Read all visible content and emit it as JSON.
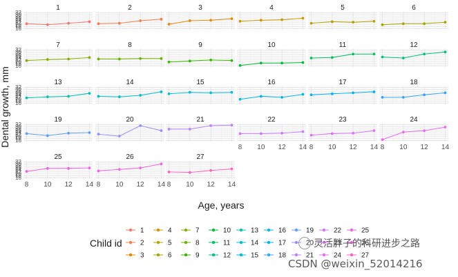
{
  "chart_data": {
    "type": "line",
    "title": "",
    "xlabel": "Age, years",
    "ylabel": "Dental growth, mm",
    "x": [
      8,
      10,
      12,
      14
    ],
    "x_ticks": [
      8,
      10,
      12,
      14
    ],
    "y_ticks": [
      16,
      18,
      20,
      22,
      24,
      26,
      28,
      30,
      32
    ],
    "ylim": [
      15,
      33
    ],
    "xlim": [
      7.7,
      14.3
    ],
    "grid": true,
    "legend_title": "Child id",
    "legend_position": "bottom",
    "facets": [
      "1",
      "2",
      "3",
      "4",
      "5",
      "6",
      "7",
      "8",
      "9",
      "10",
      "11",
      "12",
      "13",
      "14",
      "15",
      "16",
      "17",
      "18",
      "19",
      "20",
      "21",
      "22",
      "23",
      "24",
      "25",
      "26",
      "27"
    ],
    "series": [
      {
        "name": "1",
        "color": "#F8766D",
        "values": [
          21,
          20,
          21.5,
          23
        ]
      },
      {
        "name": "2",
        "color": "#F07E4E",
        "values": [
          21,
          21.5,
          24,
          25.5
        ]
      },
      {
        "name": "3",
        "color": "#E58700",
        "values": [
          20.5,
          24,
          24.5,
          26
        ]
      },
      {
        "name": "4",
        "color": "#C99800",
        "values": [
          23.5,
          24.5,
          25,
          26.5
        ]
      },
      {
        "name": "5",
        "color": "#B8A000",
        "values": [
          21.5,
          23,
          22.5,
          23.5
        ]
      },
      {
        "name": "6",
        "color": "#A3A500",
        "values": [
          20,
          21,
          21,
          22.5
        ]
      },
      {
        "name": "7",
        "color": "#85AD00",
        "values": [
          21.5,
          22.5,
          23,
          24.5
        ]
      },
      {
        "name": "8",
        "color": "#6BB100",
        "values": [
          23,
          23,
          23.5,
          23.5
        ]
      },
      {
        "name": "9",
        "color": "#39B600",
        "values": [
          20,
          21,
          22,
          21.5
        ]
      },
      {
        "name": "10",
        "color": "#00BA38",
        "values": [
          16.5,
          19,
          19,
          19.5
        ]
      },
      {
        "name": "11",
        "color": "#00BD5F",
        "values": [
          24,
          24.5,
          28,
          28
        ]
      },
      {
        "name": "12",
        "color": "#00BF7D",
        "values": [
          25,
          24,
          28,
          30
        ]
      },
      {
        "name": "13",
        "color": "#00C0AF",
        "values": [
          21.5,
          22.5,
          23,
          26
        ]
      },
      {
        "name": "14",
        "color": "#00BCC9",
        "values": [
          23,
          22.5,
          24,
          27.5
        ]
      },
      {
        "name": "15",
        "color": "#00BCD8",
        "values": [
          25.5,
          27,
          26.5,
          27
        ]
      },
      {
        "name": "16",
        "color": "#00B5E8",
        "values": [
          20,
          23,
          22,
          25
        ]
      },
      {
        "name": "17",
        "color": "#00B0F6",
        "values": [
          24.5,
          25.5,
          26.5,
          27.5
        ]
      },
      {
        "name": "18",
        "color": "#35A2FF",
        "values": [
          22,
          22,
          24.5,
          26.5
        ]
      },
      {
        "name": "19",
        "color": "#619CFF",
        "values": [
          23,
          21,
          23.5,
          24
        ]
      },
      {
        "name": "20",
        "color": "#9590FF",
        "values": [
          22.5,
          20.5,
          31,
          26
        ]
      },
      {
        "name": "21",
        "color": "#B983FF",
        "values": [
          27.5,
          27.5,
          31,
          31.5
        ]
      },
      {
        "name": "22",
        "color": "#C77CFF",
        "values": [
          23,
          23,
          23.5,
          25
        ]
      },
      {
        "name": "23",
        "color": "#DB72FB",
        "values": [
          21.5,
          23,
          23.5,
          26
        ]
      },
      {
        "name": "24",
        "color": "#E76BF3",
        "values": [
          17,
          24.5,
          26,
          29.5
        ]
      },
      {
        "name": "25",
        "color": "#F062DF",
        "values": [
          22.5,
          25.5,
          25.5,
          26
        ]
      },
      {
        "name": "26",
        "color": "#F863DF",
        "values": [
          23,
          24.5,
          26,
          30
        ]
      },
      {
        "name": "27",
        "color": "#FF62BC",
        "values": [
          22,
          21.5,
          23.5,
          25
        ]
      }
    ]
  },
  "watermark": {
    "wechat_text": "灵活胖子的科研进步之路",
    "csdn_text": "CSDN @weixin_52014216"
  }
}
